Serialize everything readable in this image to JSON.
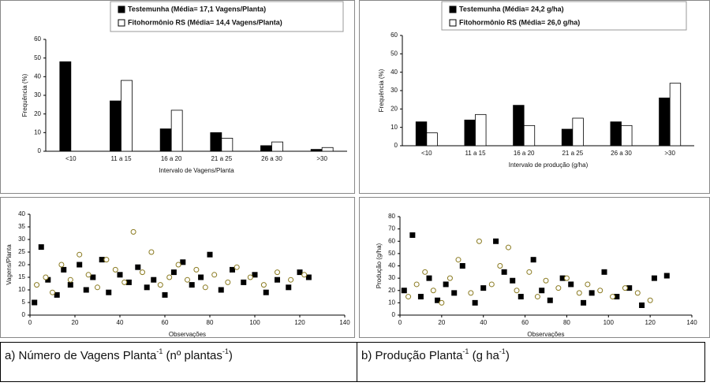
{
  "chart_data": [
    {
      "type": "bar",
      "legend": "top",
      "series": [
        {
          "name": "Testemunha (Média= 17,1 Vagens/Planta)",
          "color": "#000000",
          "values": [
            48,
            27,
            12,
            10,
            3,
            1
          ]
        },
        {
          "name": "Fitohormônio RS (Média= 14,4 Vagens/Planta)",
          "color": "#ffffff",
          "values": [
            0,
            38,
            22,
            7,
            5,
            2
          ]
        }
      ],
      "categories": [
        "<10",
        "11 a 15",
        "16 a 20",
        "21 a 25",
        "26 a 30",
        ">30"
      ],
      "x_label": "Intervalo de Vagens/Planta",
      "y_label": "Frequência (%)",
      "ylim": [
        0,
        60
      ],
      "yticks": [
        0,
        10,
        20,
        30,
        40,
        50,
        60
      ]
    },
    {
      "type": "bar",
      "legend": "top",
      "series": [
        {
          "name": "Testemunha (Média= 24,2 g/ha)",
          "color": "#000000",
          "values": [
            13,
            14,
            22,
            9,
            13,
            26
          ]
        },
        {
          "name": "Fitohormônio RS (Média= 26,0 g/ha)",
          "color": "#ffffff",
          "values": [
            7,
            17,
            11,
            15,
            11,
            34
          ]
        }
      ],
      "categories": [
        "<10",
        "11 a 15",
        "16 a 20",
        "21 a 25",
        "26 a 30",
        ">30"
      ],
      "x_label": "Intervalo de produção (g/ha)",
      "y_label": "Frequência (%)",
      "ylim": [
        0,
        60
      ],
      "yticks": [
        0,
        10,
        20,
        30,
        40,
        50,
        60
      ]
    },
    {
      "type": "scatter",
      "series": [
        {
          "color": "#000000",
          "x": [
            2,
            5,
            8,
            12,
            15,
            18,
            22,
            25,
            28,
            32,
            35,
            40,
            44,
            48,
            52,
            55,
            60,
            64,
            68,
            72,
            76,
            80,
            85,
            90,
            95,
            100,
            105,
            110,
            115,
            120,
            124
          ],
          "values": [
            5,
            27,
            14,
            8,
            18,
            12,
            20,
            10,
            15,
            22,
            9,
            16,
            13,
            19,
            11,
            14,
            8,
            17,
            21,
            12,
            15,
            24,
            10,
            18,
            13,
            16,
            9,
            14,
            11,
            17,
            15
          ]
        },
        {
          "color": "#ffffff",
          "x": [
            3,
            7,
            10,
            14,
            18,
            22,
            26,
            30,
            34,
            38,
            42,
            46,
            50,
            54,
            58,
            62,
            66,
            70,
            74,
            78,
            82,
            88,
            92,
            98,
            104,
            110,
            116,
            122
          ],
          "values": [
            12,
            15,
            9,
            20,
            14,
            24,
            16,
            11,
            22,
            18,
            13,
            33,
            17,
            25,
            12,
            15,
            20,
            14,
            18,
            11,
            16,
            13,
            19,
            15,
            12,
            17,
            14,
            16
          ]
        }
      ],
      "x_label": "Observações",
      "y_label": "Vagens/Planta",
      "xlim": [
        0,
        140
      ],
      "xticks": [
        0,
        20,
        40,
        60,
        80,
        100,
        120,
        140
      ],
      "ylim": [
        0,
        40
      ],
      "yticks": [
        0,
        5,
        10,
        15,
        20,
        25,
        30,
        35,
        40
      ]
    },
    {
      "type": "scatter",
      "series": [
        {
          "color": "#000000",
          "x": [
            2,
            6,
            10,
            14,
            18,
            22,
            26,
            30,
            36,
            40,
            46,
            50,
            54,
            58,
            64,
            68,
            72,
            78,
            82,
            88,
            92,
            98,
            104,
            110,
            116,
            122,
            128
          ],
          "values": [
            20,
            65,
            15,
            30,
            12,
            25,
            18,
            40,
            10,
            22,
            60,
            35,
            28,
            15,
            45,
            20,
            12,
            30,
            25,
            10,
            18,
            35,
            15,
            22,
            8,
            30,
            32
          ]
        },
        {
          "color": "#ffffff",
          "x": [
            4,
            8,
            12,
            16,
            20,
            24,
            28,
            34,
            38,
            44,
            48,
            52,
            56,
            62,
            66,
            70,
            76,
            80,
            86,
            90,
            96,
            102,
            108,
            114,
            120
          ],
          "values": [
            15,
            25,
            35,
            20,
            10,
            30,
            45,
            18,
            60,
            25,
            40,
            55,
            20,
            35,
            15,
            28,
            22,
            30,
            18,
            25,
            20,
            15,
            22,
            18,
            12
          ]
        }
      ],
      "x_label": "Observações",
      "y_label": "Produção (g/ha)",
      "xlim": [
        0,
        140
      ],
      "xticks": [
        0,
        20,
        40,
        60,
        80,
        100,
        120,
        140
      ],
      "ylim": [
        0,
        80
      ],
      "yticks": [
        0,
        10,
        20,
        30,
        40,
        50,
        60,
        70,
        80
      ]
    }
  ],
  "captions": [
    [
      "a) Número de Vagens Planta",
      "-1",
      " (nº plantas",
      "-1",
      ")"
    ],
    [
      "b) Produção Planta",
      "-1",
      " (g ha",
      "-1",
      ")"
    ]
  ]
}
